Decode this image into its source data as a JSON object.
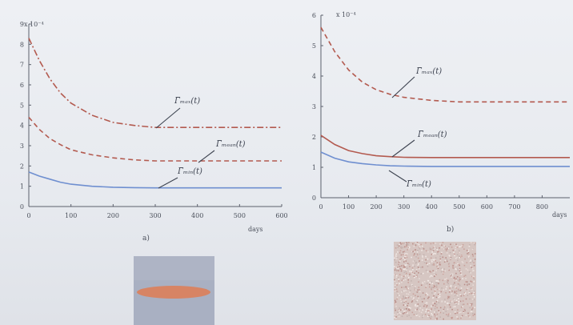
{
  "colors": {
    "axis": "#5b606c",
    "upper": "#b35a4f",
    "mid": "#b35a4f",
    "lower": "#6f8fd0",
    "fiber": "#d9825f",
    "panel_bg": "#a9b0c2"
  },
  "chart_data": [
    {
      "type": "line",
      "panel_label": "a)",
      "exponent_label": "x 10⁻⁴",
      "xlabel": "days",
      "xlim": [
        0,
        600
      ],
      "ylim": [
        0,
        9
      ],
      "xticks": [
        0,
        100,
        200,
        300,
        400,
        500,
        600
      ],
      "yticks": [
        0,
        1,
        2,
        3,
        4,
        5,
        6,
        7,
        8,
        9
      ],
      "grid": false,
      "series": [
        {
          "name": "Γ̅ₘₐₓ(t)",
          "style": "dash-dot",
          "color_key": "upper",
          "x": [
            0,
            25,
            50,
            75,
            100,
            150,
            200,
            250,
            300,
            350,
            400,
            500,
            600
          ],
          "y": [
            8.3,
            7.2,
            6.3,
            5.6,
            5.1,
            4.5,
            4.15,
            4.0,
            3.9,
            3.9,
            3.9,
            3.9,
            3.9
          ]
        },
        {
          "name": "Γ̅ₘₑₐₙ(t)",
          "style": "dashed",
          "color_key": "mid",
          "x": [
            0,
            25,
            50,
            75,
            100,
            150,
            200,
            250,
            300,
            350,
            400,
            500,
            600
          ],
          "y": [
            4.4,
            3.8,
            3.35,
            3.05,
            2.8,
            2.55,
            2.4,
            2.3,
            2.25,
            2.25,
            2.25,
            2.25,
            2.25
          ]
        },
        {
          "name": "Γ̅ₘᵢₙ(t)",
          "style": "solid",
          "color_key": "lower",
          "x": [
            0,
            25,
            50,
            75,
            100,
            150,
            200,
            250,
            300,
            350,
            400,
            500,
            600
          ],
          "y": [
            1.7,
            1.5,
            1.35,
            1.2,
            1.1,
            1.0,
            0.95,
            0.93,
            0.92,
            0.92,
            0.92,
            0.92,
            0.92
          ]
        }
      ],
      "annotations": [
        "Γ̅ₘₐₓ(t)",
        "Γ̅ₘₑₐₙ(t)",
        "Γ̅ₘᵢₙ(t)"
      ]
    },
    {
      "type": "line",
      "panel_label": "b)",
      "exponent_label": "x 10⁻⁴",
      "xlabel": "days",
      "xlim": [
        0,
        900
      ],
      "ylim": [
        0,
        6
      ],
      "xticks": [
        0,
        100,
        200,
        300,
        400,
        500,
        600,
        700,
        800
      ],
      "yticks": [
        0,
        1,
        2,
        3,
        4,
        5,
        6
      ],
      "grid": false,
      "series": [
        {
          "name": "Γ̅ₘₐₓ(t)",
          "style": "dashed",
          "color_key": "upper",
          "x": [
            0,
            50,
            100,
            150,
            200,
            250,
            300,
            400,
            500,
            600,
            700,
            800,
            900
          ],
          "y": [
            5.6,
            4.8,
            4.2,
            3.8,
            3.55,
            3.4,
            3.3,
            3.2,
            3.15,
            3.15,
            3.15,
            3.15,
            3.15
          ]
        },
        {
          "name": "Γ̅ₘₑₐₙ(t)",
          "style": "solid",
          "color_key": "mid",
          "x": [
            0,
            50,
            100,
            150,
            200,
            250,
            300,
            400,
            500,
            600,
            700,
            800,
            900
          ],
          "y": [
            2.05,
            1.75,
            1.55,
            1.45,
            1.38,
            1.35,
            1.33,
            1.32,
            1.32,
            1.32,
            1.32,
            1.32,
            1.32
          ]
        },
        {
          "name": "Γ̅ₘᵢₙ(t)",
          "style": "solid",
          "color_key": "lower",
          "x": [
            0,
            50,
            100,
            150,
            200,
            250,
            300,
            400,
            500,
            600,
            700,
            800,
            900
          ],
          "y": [
            1.5,
            1.3,
            1.18,
            1.12,
            1.08,
            1.05,
            1.04,
            1.03,
            1.03,
            1.03,
            1.03,
            1.03,
            1.03
          ]
        }
      ],
      "annotations": [
        "Γ̅ₘₐₓ(t)",
        "Γ̅ₘₑₐₙ(t)",
        "Γ̅ₘᵢₙ(t)"
      ]
    }
  ]
}
